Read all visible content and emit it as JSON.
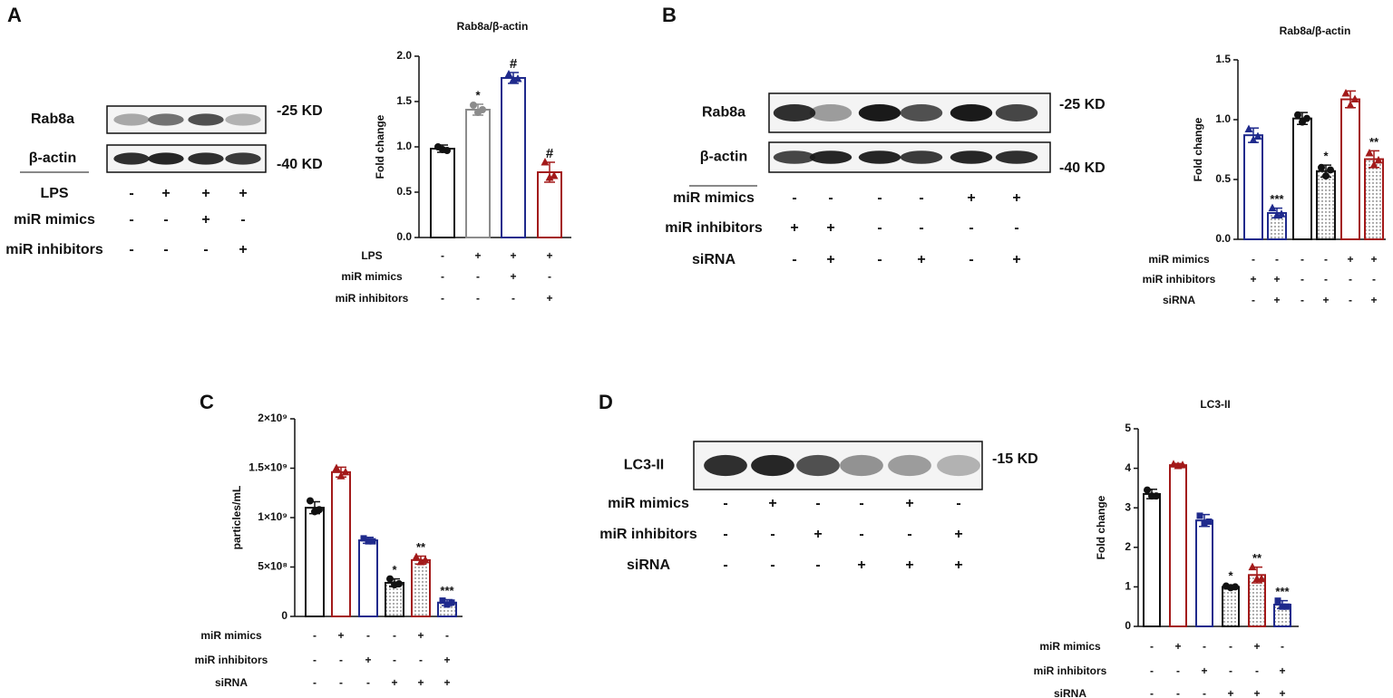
{
  "panels": [
    "A",
    "B",
    "C",
    "D"
  ],
  "blots": [
    {
      "rows": [
        {
          "label": "Rab8a",
          "size": "-25 KD"
        },
        {
          "label": "β-actin",
          "size": "-40 KD"
        }
      ],
      "conditions": [
        {
          "label": "LPS",
          "signs": [
            "-",
            "+",
            "+",
            "+"
          ]
        },
        {
          "label": "miR mimics",
          "signs": [
            "-",
            "-",
            "+",
            "-"
          ]
        },
        {
          "label": "miR inhibitors",
          "signs": [
            "-",
            "-",
            "-",
            "+"
          ]
        }
      ]
    },
    {
      "rows": [
        {
          "label": "Rab8a",
          "size": "-25 KD"
        },
        {
          "label": "β-actin",
          "size": "-40 KD"
        }
      ],
      "conditions": [
        {
          "label": "miR mimics",
          "signs": [
            "-",
            "-",
            "-",
            "-",
            "+",
            "+"
          ]
        },
        {
          "label": "miR inhibitors",
          "signs": [
            "+",
            "+",
            "-",
            "-",
            "-",
            "-"
          ]
        },
        {
          "label": "siRNA",
          "signs": [
            "-",
            "+",
            "-",
            "+",
            "-",
            "+"
          ]
        }
      ]
    },
    {
      "rows": [
        {
          "label": "LC3-II",
          "size": "-15 KD"
        }
      ],
      "conditions": [
        {
          "label": "miR mimics",
          "signs": [
            "-",
            "+",
            "-",
            "-",
            "+",
            "-"
          ]
        },
        {
          "label": "miR inhibitors",
          "signs": [
            "-",
            "-",
            "+",
            "-",
            "-",
            "+"
          ]
        },
        {
          "label": "siRNA",
          "signs": [
            "-",
            "-",
            "-",
            "+",
            "+",
            "+"
          ]
        }
      ]
    }
  ],
  "chart_data": [
    {
      "type": "bar",
      "title": "Rab8a/β-actin",
      "y_label": "Fold change",
      "values": [
        0.98,
        1.41,
        1.76,
        0.72
      ],
      "errors": [
        0.04,
        0.06,
        0.06,
        0.11
      ],
      "points": [
        [
          1.0,
          0.97,
          0.96
        ],
        [
          1.46,
          1.38,
          1.41
        ],
        [
          1.8,
          1.74,
          1.75
        ],
        [
          0.83,
          0.66,
          0.68
        ]
      ],
      "colors": [
        "#111111",
        "#8c8c8c",
        "#1f2a8c",
        "#a31a1a"
      ],
      "hatched": [
        false,
        false,
        false,
        false
      ],
      "markers": [
        "circle",
        "circle",
        "triangle",
        "triangle"
      ],
      "annotations": [
        null,
        "*",
        "#",
        "#"
      ],
      "ylim": [
        0,
        2.0
      ],
      "yticks": [
        {
          "value": 0,
          "label": "0.0"
        },
        {
          "value": 0.5,
          "label": "0.5"
        },
        {
          "value": 1,
          "label": "1.0"
        },
        {
          "value": 1.5,
          "label": "1.5"
        },
        {
          "value": 2,
          "label": "2.0"
        }
      ],
      "conditions": [
        {
          "label": "LPS",
          "signs": [
            "-",
            "+",
            "+",
            "+"
          ]
        },
        {
          "label": "miR mimics",
          "signs": [
            "-",
            "-",
            "+",
            "-"
          ]
        },
        {
          "label": "miR inhibitors",
          "signs": [
            "-",
            "-",
            "-",
            "+"
          ]
        }
      ]
    },
    {
      "type": "bar",
      "title": "Rab8a/β-actin",
      "y_label": "Fold change",
      "values": [
        0.87,
        0.22,
        1.01,
        0.57,
        1.17,
        0.67
      ],
      "errors": [
        0.06,
        0.04,
        0.05,
        0.05,
        0.07,
        0.07
      ],
      "points": [
        [
          0.92,
          0.83,
          0.86
        ],
        [
          0.26,
          0.2,
          0.21
        ],
        [
          1.04,
          0.98,
          1.01
        ],
        [
          0.6,
          0.53,
          0.58
        ],
        [
          1.22,
          1.12,
          1.17
        ],
        [
          0.72,
          0.62,
          0.66
        ]
      ],
      "colors": [
        "#1f2a8c",
        "#1f2a8c",
        "#111111",
        "#111111",
        "#a31a1a",
        "#a31a1a"
      ],
      "hatched": [
        false,
        true,
        false,
        true,
        false,
        true
      ],
      "markers": [
        "triangle",
        "triangle",
        "circle",
        "circle",
        "triangle",
        "triangle"
      ],
      "annotations": [
        null,
        "***",
        null,
        "*",
        null,
        "**"
      ],
      "ylim": [
        0,
        1.5
      ],
      "yticks": [
        {
          "value": 0,
          "label": "0.0"
        },
        {
          "value": 0.5,
          "label": "0.5"
        },
        {
          "value": 1,
          "label": "1.0"
        },
        {
          "value": 1.5,
          "label": "1.5"
        }
      ],
      "conditions": [
        {
          "label": "miR mimics",
          "signs": [
            "-",
            "-",
            "-",
            "-",
            "+",
            "+"
          ]
        },
        {
          "label": "miR inhibitors",
          "signs": [
            "+",
            "+",
            "-",
            "-",
            "-",
            "-"
          ]
        },
        {
          "label": "siRNA",
          "signs": [
            "-",
            "+",
            "-",
            "+",
            "-",
            "+"
          ]
        }
      ]
    },
    {
      "type": "bar",
      "y_label": "particles/mL",
      "values": [
        1100000000,
        1460000000,
        770000000,
        340000000,
        570000000,
        140000000
      ],
      "errors": [
        60000000,
        50000000,
        30000000,
        40000000,
        40000000,
        30000000
      ],
      "points": [
        [
          1170000000,
          1060000000,
          1080000000
        ],
        [
          1500000000,
          1420000000,
          1460000000
        ],
        [
          790000000,
          760000000,
          760000000
        ],
        [
          380000000,
          320000000,
          330000000
        ],
        [
          600000000,
          550000000,
          570000000
        ],
        [
          160000000,
          120000000,
          140000000
        ]
      ],
      "colors": [
        "#111111",
        "#a31a1a",
        "#1f2a8c",
        "#111111",
        "#a31a1a",
        "#1f2a8c"
      ],
      "hatched": [
        false,
        false,
        false,
        true,
        true,
        true
      ],
      "markers": [
        "circle",
        "triangle",
        "square",
        "circle",
        "triangle",
        "square"
      ],
      "annotations": [
        null,
        null,
        null,
        "*",
        "**",
        "***"
      ],
      "ylim": [
        0,
        2000000000
      ],
      "yticks": [
        0,
        {
          "value": 500000000,
          "label": "5×10⁸"
        },
        {
          "value": 1000000000,
          "label": "1×10⁹"
        },
        {
          "value": 1500000000,
          "label": "1.5×10⁹"
        },
        {
          "value": 2000000000,
          "label": "2×10⁹"
        }
      ],
      "conditions": [
        {
          "label": "miR mimics",
          "signs": [
            "-",
            "+",
            "-",
            "-",
            "+",
            "-"
          ]
        },
        {
          "label": "miR inhibitors",
          "signs": [
            "-",
            "-",
            "+",
            "-",
            "-",
            "+"
          ]
        },
        {
          "label": "siRNA",
          "signs": [
            "-",
            "-",
            "-",
            "+",
            "+",
            "+"
          ]
        }
      ]
    },
    {
      "type": "bar",
      "title": "LC3-II",
      "y_label": "Fold change",
      "values": [
        3.35,
        4.08,
        2.68,
        1.0,
        1.3,
        0.55
      ],
      "errors": [
        0.12,
        0.04,
        0.15,
        0.05,
        0.2,
        0.1
      ],
      "points": [
        [
          3.45,
          3.3,
          3.3
        ],
        [
          4.1,
          4.06,
          4.08
        ],
        [
          2.8,
          2.6,
          2.65
        ],
        [
          1.02,
          0.98,
          1.0
        ],
        [
          1.5,
          1.2,
          1.2
        ],
        [
          0.65,
          0.5,
          0.5
        ]
      ],
      "colors": [
        "#111111",
        "#a31a1a",
        "#1f2a8c",
        "#111111",
        "#a31a1a",
        "#1f2a8c"
      ],
      "hatched": [
        false,
        false,
        false,
        true,
        true,
        true
      ],
      "markers": [
        "circle",
        "triangle",
        "square",
        "circle",
        "triangle",
        "square"
      ],
      "annotations": [
        null,
        null,
        null,
        "*",
        "**",
        "***"
      ],
      "ylim": [
        0,
        5
      ],
      "yticks": [
        0,
        1,
        2,
        3,
        4,
        5
      ],
      "conditions": [
        {
          "label": "miR mimics",
          "signs": [
            "-",
            "+",
            "-",
            "-",
            "+",
            "-"
          ]
        },
        {
          "label": "miR inhibitors",
          "signs": [
            "-",
            "-",
            "+",
            "-",
            "-",
            "+"
          ]
        },
        {
          "label": "siRNA",
          "signs": [
            "-",
            "-",
            "-",
            "+",
            "+",
            "+"
          ]
        }
      ]
    }
  ]
}
